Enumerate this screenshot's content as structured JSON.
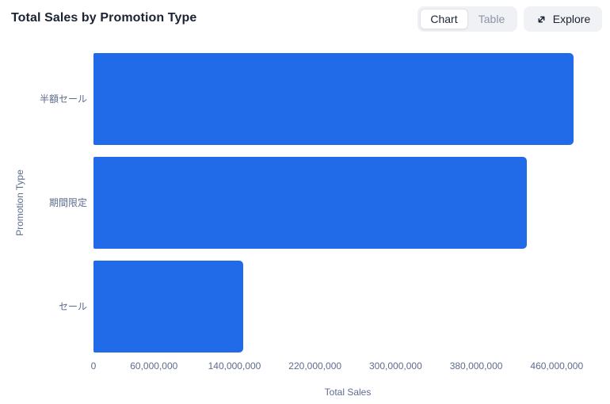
{
  "header": {
    "title": "Total Sales by Promotion Type",
    "view_toggle": {
      "options": [
        {
          "label": "Chart",
          "selected": true
        },
        {
          "label": "Table",
          "selected": false
        }
      ]
    },
    "explore_button": {
      "label": "Explore",
      "icon": "expand-diagonal-icon"
    }
  },
  "colors": {
    "bar": "#216BE8",
    "axis_text": "#5D6C8E",
    "title_text": "#1C2433",
    "inactive_tab_text": "#8C94A5",
    "control_background": "#F0F1F4"
  },
  "chart_data": {
    "type": "bar",
    "orientation": "horizontal",
    "title": "Total Sales by Promotion Type",
    "categories": [
      "半額セール",
      "期間限定",
      "セール"
    ],
    "values": [
      477000000,
      430000000,
      149000000
    ],
    "xlabel": "Total Sales",
    "ylabel": "Promotion Type",
    "x_ticks": [
      0,
      60000000,
      140000000,
      220000000,
      300000000,
      380000000,
      460000000
    ],
    "x_tick_labels": [
      "0",
      "60,000,000",
      "140,000,000",
      "220,000,000",
      "300,000,000",
      "380,000,000",
      "460,000,000"
    ],
    "xlim": [
      0,
      505000000
    ],
    "grid": false,
    "legend": false
  }
}
